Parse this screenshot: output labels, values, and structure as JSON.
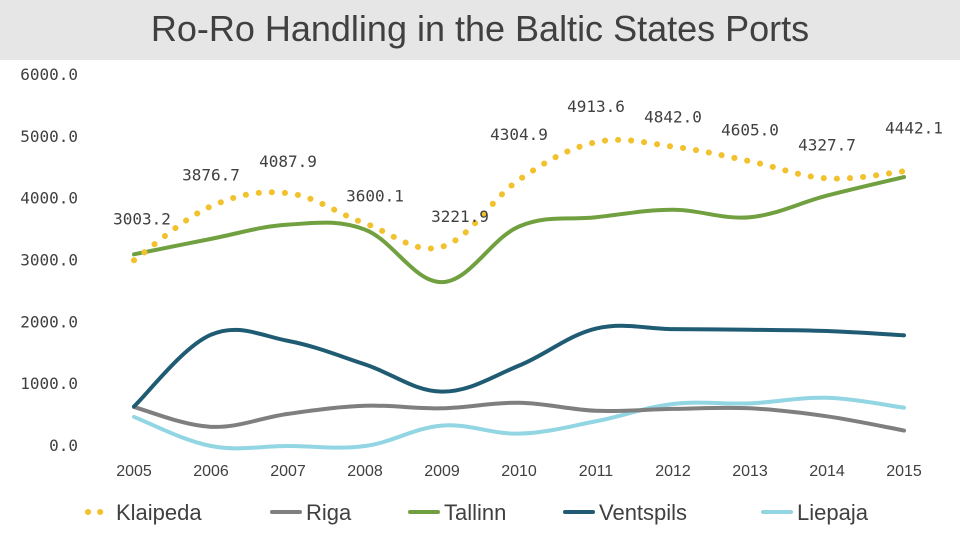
{
  "chart_data": {
    "type": "line",
    "title": "Ro-Ro Handling in the Baltic States Ports",
    "xlabel": "",
    "ylabel": "",
    "ylim": [
      0,
      6000
    ],
    "yticks": [
      "0.0",
      "1000.0",
      "2000.0",
      "3000.0",
      "4000.0",
      "5000.0",
      "6000.0"
    ],
    "categories": [
      "2005",
      "2006",
      "2007",
      "2008",
      "2009",
      "2010",
      "2011",
      "2012",
      "2013",
      "2014",
      "2015"
    ],
    "grid": false,
    "legend_position": "bottom",
    "series": [
      {
        "name": "Klaipeda",
        "color": "#f2c12e",
        "style": "dotted",
        "values": [
          3003.2,
          3876.7,
          4087.9,
          3600.1,
          3221.9,
          4304.9,
          4913.6,
          4842.0,
          4605.0,
          4327.7,
          4442.1
        ],
        "labels": [
          "3003.2",
          "3876.7",
          "4087.9",
          "3600.1",
          "3221.9",
          "4304.9",
          "4913.6",
          "4842.0",
          "4605.0",
          "4327.7",
          "4442.1"
        ]
      },
      {
        "name": "Riga",
        "color": "#7f7f7f",
        "style": "solid",
        "values": [
          630,
          310,
          520,
          650,
          610,
          700,
          570,
          600,
          610,
          480,
          250
        ]
      },
      {
        "name": "Tallinn",
        "color": "#70a040",
        "style": "solid",
        "values": [
          3100,
          3350,
          3580,
          3500,
          2650,
          3550,
          3700,
          3820,
          3700,
          4050,
          4350
        ]
      },
      {
        "name": "Ventspils",
        "color": "#1f5c73",
        "style": "solid",
        "values": [
          640,
          1800,
          1700,
          1320,
          880,
          1300,
          1900,
          1890,
          1880,
          1860,
          1790
        ]
      },
      {
        "name": "Liepaja",
        "color": "#92d5e3",
        "style": "solid",
        "values": [
          470,
          0,
          0,
          0,
          330,
          200,
          400,
          680,
          690,
          780,
          620
        ]
      }
    ]
  }
}
